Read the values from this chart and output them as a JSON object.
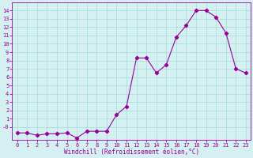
{
  "x": [
    0,
    1,
    2,
    3,
    4,
    5,
    6,
    7,
    8,
    9,
    10,
    11,
    12,
    13,
    14,
    15,
    16,
    17,
    18,
    19,
    20,
    21,
    22,
    23
  ],
  "y": [
    -0.7,
    -0.7,
    -1.0,
    -0.8,
    -0.8,
    -0.7,
    -1.3,
    -0.5,
    -0.5,
    -0.5,
    1.5,
    2.5,
    8.3,
    8.3,
    6.5,
    7.5,
    10.8,
    12.2,
    14.0,
    14.0,
    13.2,
    11.3,
    7.0,
    6.5
  ],
  "line_color": "#990099",
  "marker": "D",
  "marker_size": 2.2,
  "bg_color": "#d4f0f0",
  "grid_color": "#aadddd",
  "xlabel": "Windchill (Refroidissement éolien,°C)",
  "xlim": [
    -0.5,
    23.5
  ],
  "ylim": [
    -1.5,
    15.0
  ],
  "yticks": [
    0,
    1,
    2,
    3,
    4,
    5,
    6,
    7,
    8,
    9,
    10,
    11,
    12,
    13,
    14
  ],
  "ytick_labels": [
    "-0",
    "1",
    "2",
    "3",
    "4",
    "5",
    "6",
    "7",
    "8",
    "9",
    "10",
    "11",
    "12",
    "13",
    "14"
  ],
  "xticks": [
    0,
    1,
    2,
    3,
    4,
    5,
    6,
    7,
    8,
    9,
    10,
    11,
    12,
    13,
    14,
    15,
    16,
    17,
    18,
    19,
    20,
    21,
    22,
    23
  ],
  "tick_color": "#990099",
  "font": "monospace",
  "font_size": 5.0,
  "xlabel_size": 5.5
}
